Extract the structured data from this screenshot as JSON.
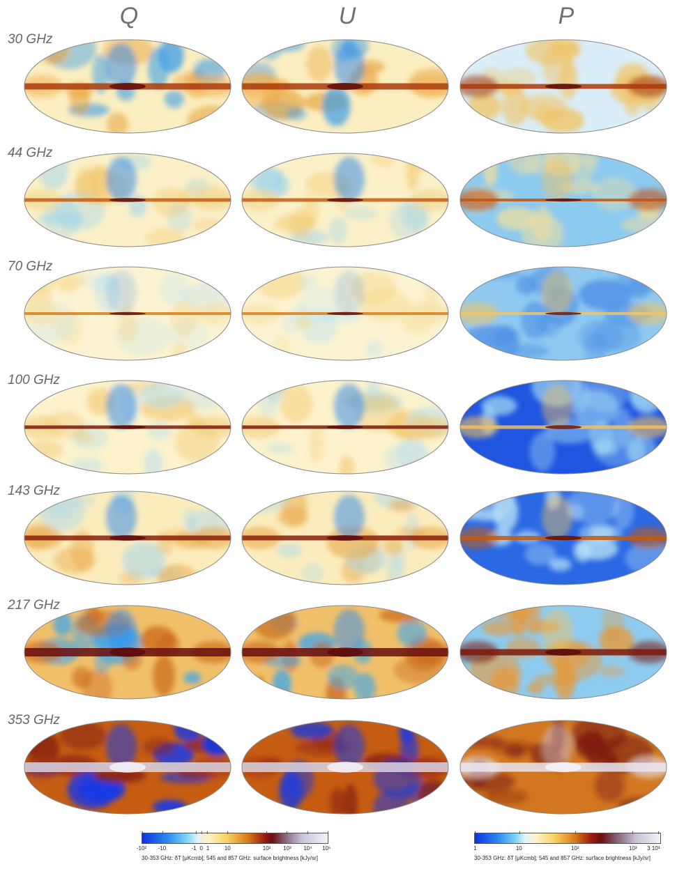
{
  "columns": [
    "Q",
    "U",
    "P"
  ],
  "rows": [
    "30 GHz",
    "44 GHz",
    "70 GHz",
    "100 GHz",
    "143 GHz",
    "217 GHz",
    "353 GHz"
  ],
  "colorbar_left": {
    "ticks": [
      "-10²",
      "-10",
      "-1",
      "0",
      "1",
      "10",
      "10²",
      "10³",
      "10⁴",
      "10⁵"
    ],
    "caption": "30-353 GHz: δT [μKcmb]; 545 and 857 GHz: surface brightness [kJy/sr]"
  },
  "colorbar_right": {
    "ticks": [
      "1",
      "10",
      "10²",
      "10³",
      "3 10³"
    ],
    "caption": "30-353 GHz: δT [μKcmb]; 545 and 857 GHz: surface brightness [kJy/sr]"
  },
  "colors": {
    "deep_blue": "#1030e0",
    "light_blue": "#7fd4f5",
    "pale": "#fdf3c8",
    "yellow": "#f7d060",
    "orange": "#d87a1a",
    "dark_red": "#6a0d0d",
    "lavender": "#c9c2d8"
  }
}
